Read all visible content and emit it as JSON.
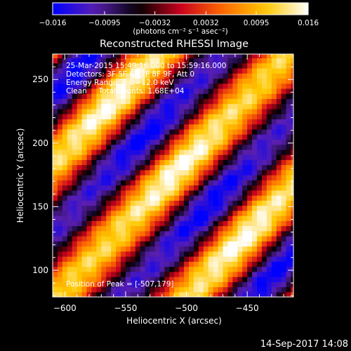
{
  "chart_data": {
    "type": "heatmap",
    "title": "Reconstructed RHESSI Image",
    "xlabel": "Heliocentric X (arcsec)",
    "ylabel": "Heliocentric Y (arcsec)",
    "xlim": [
      -610,
      -412
    ],
    "ylim": [
      79,
      270
    ],
    "x_ticks": [
      -600,
      -550,
      -500,
      -450
    ],
    "x_tick_labels": [
      "−600",
      "−550",
      "−500",
      "−450"
    ],
    "y_ticks": [
      100,
      150,
      200,
      250
    ],
    "y_tick_labels": [
      "100",
      "150",
      "200",
      "250"
    ],
    "colorbar": {
      "range": [
        -0.016,
        0.016
      ],
      "ticks": [
        -0.016,
        -0.0095,
        -0.0032,
        0.0032,
        0.0095,
        0.016
      ],
      "tick_labels": [
        "−0.016",
        "−0.0095",
        "−0.0032",
        "0.0032",
        "0.0095",
        "0.016"
      ],
      "units_label": "(photons cm⁻² s⁻¹ asec⁻²)",
      "colormap_stops": [
        "#0000ff",
        "#5a1fb0",
        "#000000",
        "#c8001e",
        "#ff6a00",
        "#ffc800",
        "#ffffff"
      ]
    },
    "annotations": [
      "25-Mar-2015 15:49:16.000 to 15:59:16.000",
      "Detectors: 3F 5F 6F 7F 8F 9F, Att 0",
      "Energy Range: 6.0 - 12.0 keV",
      "Clean     Total counts: 1.68E+04"
    ],
    "peak_label": "Position of Peak = [-507,179]",
    "peak": {
      "x": -507,
      "y": 179,
      "value": 0.016
    },
    "field": {
      "description": "diagonal stripe pattern",
      "stripe_direction_deg": 45,
      "stripe_spacing_arcsec": 76,
      "pixel_size_arcsec": 4
    }
  },
  "footer": {
    "timestamp": "14-Sep-2017 14:08"
  }
}
